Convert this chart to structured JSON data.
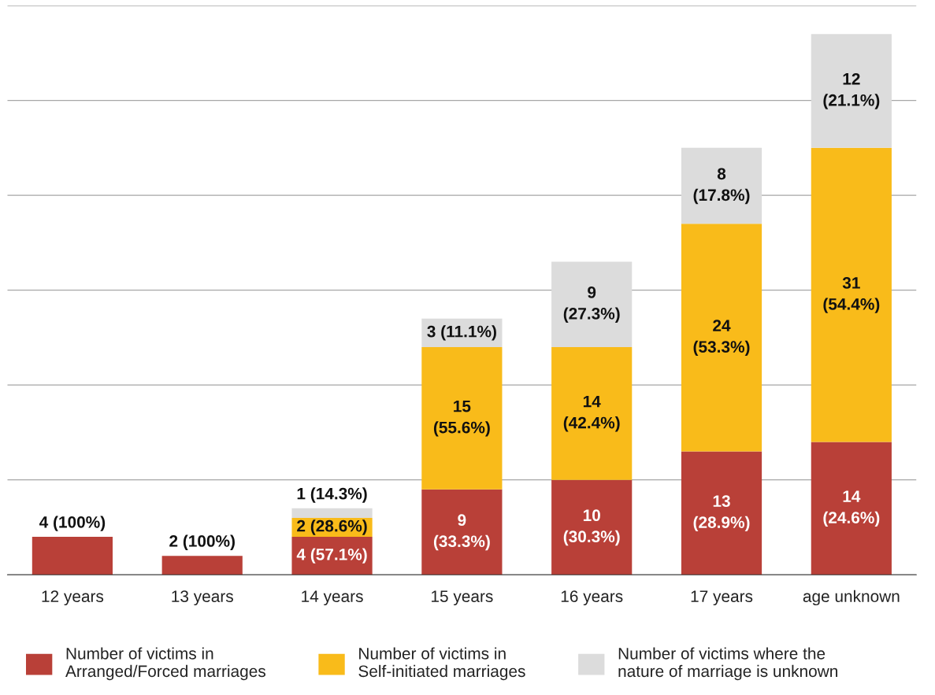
{
  "chart_data": {
    "type": "bar",
    "stacked": true,
    "categories": [
      "12 years",
      "13 years",
      "14 years",
      "15 years",
      "16 years",
      "17 years",
      "age unknown"
    ],
    "series": [
      {
        "name": "Number of victims in\nArranged/Forced marriages",
        "color": "#b94038",
        "values": [
          4,
          2,
          4,
          9,
          10,
          13,
          14
        ],
        "value_labels": [
          "4 (100%)",
          "2 (100%)",
          "4 (57.1%)",
          "9\n(33.3%)",
          "10\n(30.3%)",
          "13\n(28.9%)",
          "14\n(24.6%)"
        ]
      },
      {
        "name": "Number of victims in\nSelf-initiated marriages",
        "color": "#f9bb1a",
        "values": [
          null,
          null,
          2,
          15,
          14,
          24,
          31
        ],
        "value_labels": [
          null,
          null,
          "2 (28.6%)",
          "15\n(55.6%)",
          "14\n(42.4%)",
          "24\n(53.3%)",
          "31\n(54.4%)"
        ]
      },
      {
        "name": "Number of victims where the\nnature of marriage is unknown",
        "color": "#dcdcdc",
        "values": [
          null,
          null,
          1,
          3,
          9,
          8,
          12
        ],
        "value_labels": [
          null,
          null,
          "1 (14.3%)",
          "3 (11.1%)",
          "9\n(27.3%)",
          "8\n(17.8%)",
          "12\n(21.1%)"
        ]
      }
    ],
    "ylim": [
      0,
      60
    ],
    "yticks": [
      {
        "value": 0,
        "label": null
      },
      {
        "value": 10,
        "label": null
      },
      {
        "value": 20,
        "label": null
      },
      {
        "value": 30,
        "label": null
      },
      {
        "value": 40,
        "label": null
      },
      {
        "value": 50,
        "label": null
      },
      {
        "value": 60,
        "label": null
      }
    ],
    "tick_labels": "x",
    "grid": "y",
    "legend": "bottom"
  }
}
